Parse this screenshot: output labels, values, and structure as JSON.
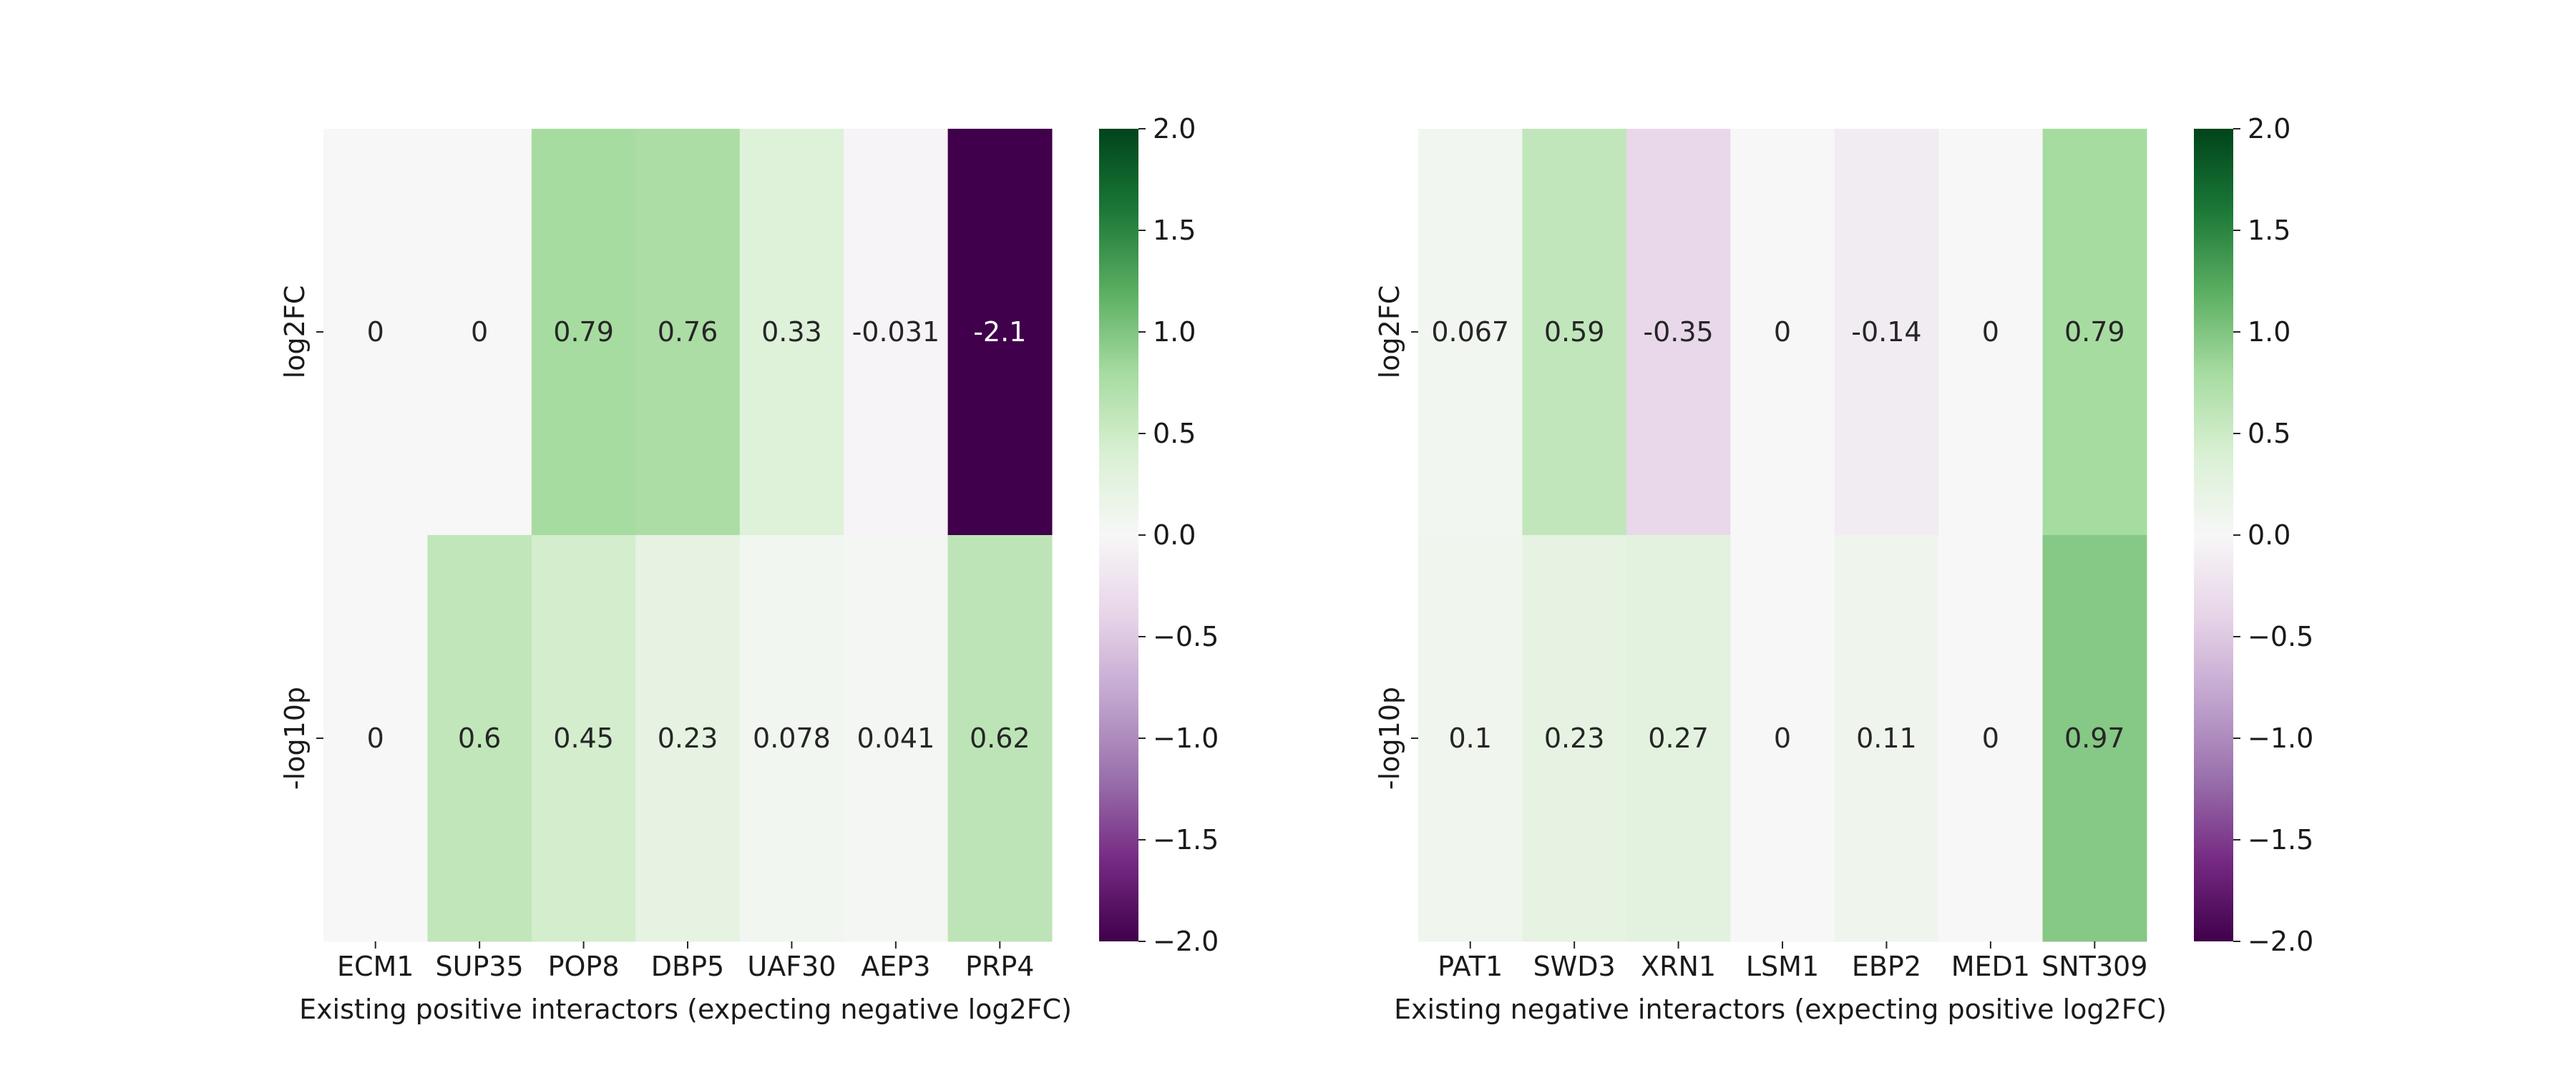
{
  "chart_data": [
    {
      "type": "heatmap",
      "rows": [
        "log2FC",
        "-log10p"
      ],
      "columns": [
        "ECM1",
        "SUP35",
        "POP8",
        "DBP5",
        "UAF30",
        "AEP3",
        "PRP4"
      ],
      "values": [
        [
          0,
          0,
          0.79,
          0.76,
          0.33,
          -0.031,
          -2.1
        ],
        [
          0,
          0.6,
          0.45,
          0.23,
          0.078,
          0.041,
          0.62
        ]
      ],
      "annotations": [
        [
          "0",
          "0",
          "0.79",
          "0.76",
          "0.33",
          "-0.031",
          "-2.1"
        ],
        [
          "0",
          "0.6",
          "0.45",
          "0.23",
          "0.078",
          "0.041",
          "0.62"
        ]
      ],
      "xlabel": "Existing positive interactors (expecting negative log2FC)",
      "ylabel": "",
      "colormap": "PRGn",
      "vmin": -2.0,
      "vmax": 2.0,
      "colorbar_ticks": [
        "2.0",
        "1.5",
        "1.0",
        "0.5",
        "0.0",
        "−0.5",
        "−1.0",
        "−1.5",
        "−2.0"
      ],
      "colorbar_tick_values": [
        2.0,
        1.5,
        1.0,
        0.5,
        0.0,
        -0.5,
        -1.0,
        -1.5,
        -2.0
      ]
    },
    {
      "type": "heatmap",
      "rows": [
        "log2FC",
        "-log10p"
      ],
      "columns": [
        "PAT1",
        "SWD3",
        "XRN1",
        "LSM1",
        "EBP2",
        "MED1",
        "SNT309"
      ],
      "values": [
        [
          0.067,
          0.59,
          -0.35,
          0,
          -0.14,
          0,
          0.79
        ],
        [
          0.1,
          0.23,
          0.27,
          0,
          0.11,
          0,
          0.97
        ]
      ],
      "annotations": [
        [
          "0.067",
          "0.59",
          "-0.35",
          "0",
          "-0.14",
          "0",
          "0.79"
        ],
        [
          "0.1",
          "0.23",
          "0.27",
          "0",
          "0.11",
          "0",
          "0.97"
        ]
      ],
      "xlabel": "Existing negative interactors (expecting positive log2FC)",
      "ylabel": "",
      "colormap": "PRGn",
      "vmin": -2.0,
      "vmax": 2.0,
      "colorbar_ticks": [
        "2.0",
        "1.5",
        "1.0",
        "0.5",
        "0.0",
        "−0.5",
        "−1.0",
        "−1.5",
        "−2.0"
      ],
      "colorbar_tick_values": [
        2.0,
        1.5,
        1.0,
        0.5,
        0.0,
        -0.5,
        -1.0,
        -1.5,
        -2.0
      ]
    }
  ]
}
